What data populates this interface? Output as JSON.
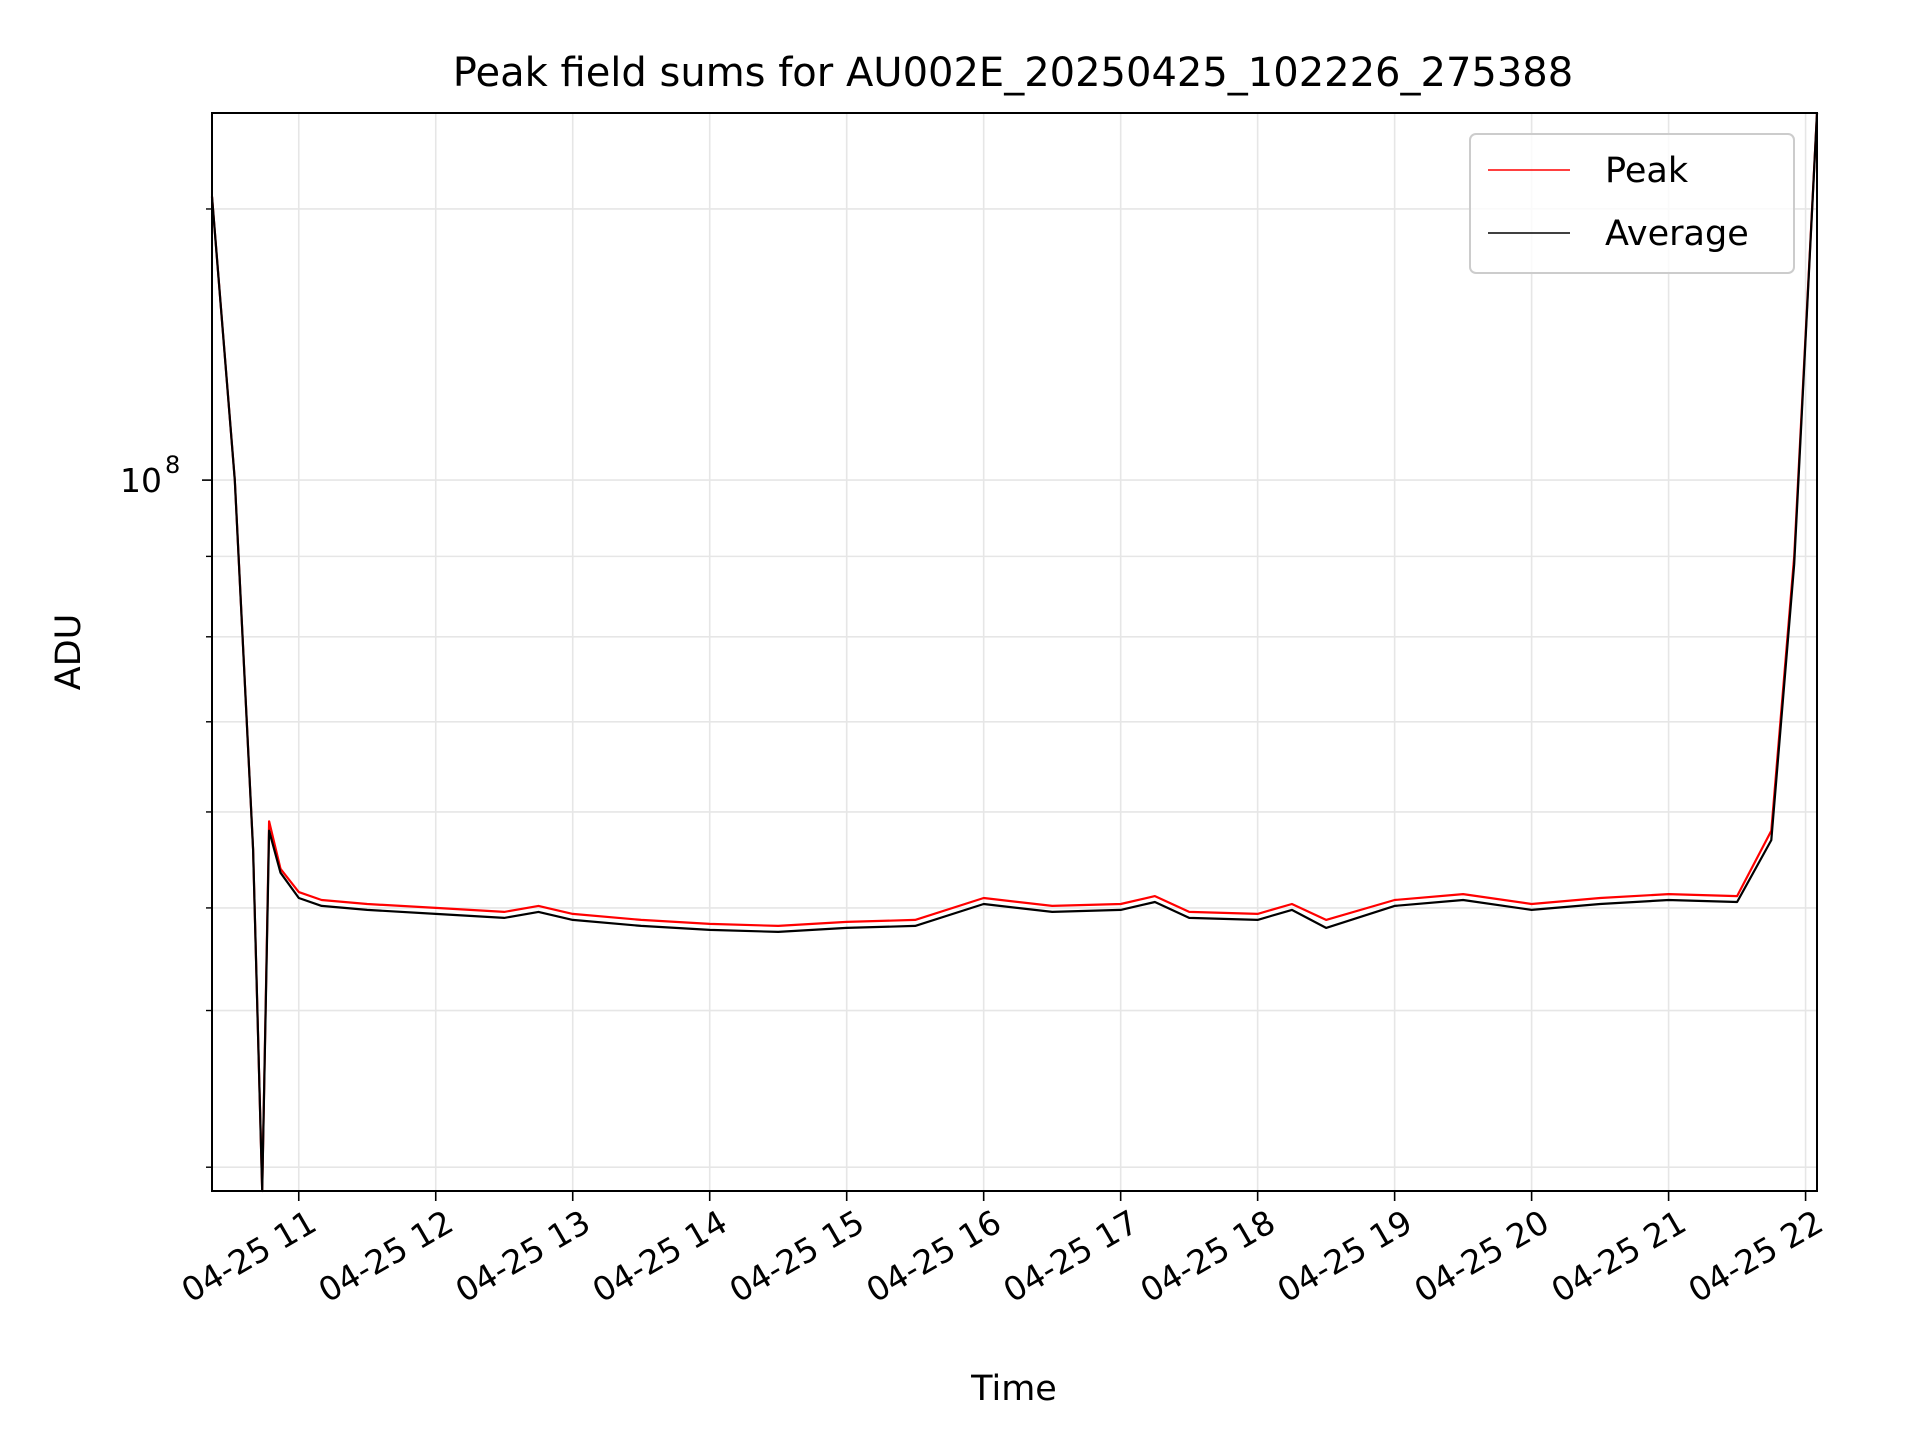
{
  "chart_data": {
    "type": "line",
    "title": "Peak field sums for AU002E_20250425_102226_275388",
    "xlabel": "Time",
    "ylabel": "ADU",
    "x_scale": "time",
    "y_scale": "log",
    "xlim": [
      "04-25 10:22",
      "04-25 22:05"
    ],
    "ylim": [
      62000000,
      128000000
    ],
    "x_ticks": [
      "04-25 11",
      "04-25 12",
      "04-25 13",
      "04-25 14",
      "04-25 15",
      "04-25 16",
      "04-25 17",
      "04-25 18",
      "04-25 19",
      "04-25 20",
      "04-25 21",
      "04-25 22"
    ],
    "y_major_ticks": [
      {
        "value": 100000000,
        "base": "10",
        "exponent": "8"
      }
    ],
    "y_minor_ticks": [
      63000000,
      70000000,
      75000000,
      80000000,
      85000000,
      90000000,
      95000000,
      120000000
    ],
    "grid": true,
    "legend_position": "top-right",
    "series": [
      {
        "name": "Peak",
        "color": "#ff0000",
        "points": [
          [
            "04-25 10:22",
            121000000
          ],
          [
            "04-25 10:32",
            100000000
          ],
          [
            "04-25 10:40",
            78000000
          ],
          [
            "04-25 10:44",
            62000000
          ],
          [
            "04-25 10:47",
            79500000
          ],
          [
            "04-25 10:52",
            77000000
          ],
          [
            "04-25 11:00",
            75800000
          ],
          [
            "04-25 11:10",
            75400000
          ],
          [
            "04-25 11:30",
            75200000
          ],
          [
            "04-25 12:00",
            75000000
          ],
          [
            "04-25 12:30",
            74800000
          ],
          [
            "04-25 12:45",
            75100000
          ],
          [
            "04-25 13:00",
            74700000
          ],
          [
            "04-25 13:30",
            74400000
          ],
          [
            "04-25 14:00",
            74200000
          ],
          [
            "04-25 14:30",
            74100000
          ],
          [
            "04-25 15:00",
            74300000
          ],
          [
            "04-25 15:30",
            74400000
          ],
          [
            "04-25 16:00",
            75500000
          ],
          [
            "04-25 16:30",
            75100000
          ],
          [
            "04-25 17:00",
            75200000
          ],
          [
            "04-25 17:15",
            75600000
          ],
          [
            "04-25 17:30",
            74800000
          ],
          [
            "04-25 18:00",
            74700000
          ],
          [
            "04-25 18:15",
            75200000
          ],
          [
            "04-25 18:30",
            74400000
          ],
          [
            "04-25 19:00",
            75400000
          ],
          [
            "04-25 19:30",
            75700000
          ],
          [
            "04-25 20:00",
            75200000
          ],
          [
            "04-25 20:30",
            75500000
          ],
          [
            "04-25 21:00",
            75700000
          ],
          [
            "04-25 21:30",
            75600000
          ],
          [
            "04-25 21:45",
            79000000
          ],
          [
            "04-25 21:55",
            95000000
          ],
          [
            "04-25 22:05",
            128000000
          ]
        ]
      },
      {
        "name": "Average",
        "color": "#000000",
        "points": [
          [
            "04-25 10:22",
            121000000
          ],
          [
            "04-25 10:32",
            100000000
          ],
          [
            "04-25 10:40",
            78000000
          ],
          [
            "04-25 10:44",
            62000000
          ],
          [
            "04-25 10:47",
            79000000
          ],
          [
            "04-25 10:52",
            76800000
          ],
          [
            "04-25 11:00",
            75500000
          ],
          [
            "04-25 11:10",
            75100000
          ],
          [
            "04-25 11:30",
            74900000
          ],
          [
            "04-25 12:00",
            74700000
          ],
          [
            "04-25 12:30",
            74500000
          ],
          [
            "04-25 12:45",
            74800000
          ],
          [
            "04-25 13:00",
            74400000
          ],
          [
            "04-25 13:30",
            74100000
          ],
          [
            "04-25 14:00",
            73900000
          ],
          [
            "04-25 14:30",
            73800000
          ],
          [
            "04-25 15:00",
            74000000
          ],
          [
            "04-25 15:30",
            74100000
          ],
          [
            "04-25 16:00",
            75200000
          ],
          [
            "04-25 16:30",
            74800000
          ],
          [
            "04-25 17:00",
            74900000
          ],
          [
            "04-25 17:15",
            75300000
          ],
          [
            "04-25 17:30",
            74500000
          ],
          [
            "04-25 18:00",
            74400000
          ],
          [
            "04-25 18:15",
            74900000
          ],
          [
            "04-25 18:30",
            74000000
          ],
          [
            "04-25 19:00",
            75100000
          ],
          [
            "04-25 19:30",
            75400000
          ],
          [
            "04-25 20:00",
            74900000
          ],
          [
            "04-25 20:30",
            75200000
          ],
          [
            "04-25 21:00",
            75400000
          ],
          [
            "04-25 21:30",
            75300000
          ],
          [
            "04-25 21:45",
            78500000
          ],
          [
            "04-25 21:55",
            94500000
          ],
          [
            "04-25 22:05",
            128000000
          ]
        ]
      }
    ]
  }
}
